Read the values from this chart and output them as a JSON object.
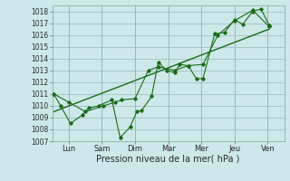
{
  "xlabel": "Pression niveau de la mer( hPa )",
  "bg_color": "#cce8e8",
  "grid_color": "#99bbbb",
  "line_color": "#1a6b1a",
  "ylim": [
    1007,
    1018.5
  ],
  "xlim": [
    0,
    7
  ],
  "x_tick_pos": [
    0.5,
    1.5,
    2.5,
    3.5,
    4.5,
    5.5,
    6.5
  ],
  "x_labels": [
    "Lun",
    "Sam",
    "Dim",
    "Mar",
    "Mer",
    "Jeu",
    "Ven"
  ],
  "y_ticks": [
    1007,
    1008,
    1009,
    1010,
    1011,
    1012,
    1013,
    1014,
    1015,
    1016,
    1017,
    1018
  ],
  "series1_x": [
    0.05,
    0.25,
    0.55,
    0.9,
    1.1,
    1.4,
    1.8,
    2.05,
    2.35,
    2.55,
    2.7,
    3.0,
    3.2,
    3.45,
    3.7,
    3.85,
    4.1,
    4.35,
    4.55,
    4.9,
    5.2,
    5.5,
    5.75,
    6.05,
    6.3,
    6.55
  ],
  "series1_y": [
    1011.0,
    1010.0,
    1008.5,
    1009.2,
    1009.8,
    1010.0,
    1010.5,
    1007.3,
    1008.2,
    1009.5,
    1009.6,
    1010.8,
    1013.7,
    1013.0,
    1012.8,
    1013.5,
    1013.4,
    1012.3,
    1012.3,
    1016.1,
    1016.2,
    1017.3,
    1016.9,
    1018.0,
    1018.2,
    1016.8
  ],
  "series2_x": [
    0.05,
    0.5,
    1.0,
    1.55,
    1.9,
    2.1,
    2.5,
    2.9,
    3.2,
    3.7,
    4.1,
    4.55,
    5.0,
    5.5,
    6.05,
    6.55
  ],
  "series2_y": [
    1011.0,
    1010.3,
    1009.5,
    1010.0,
    1010.3,
    1010.5,
    1010.6,
    1013.0,
    1013.3,
    1013.0,
    1013.4,
    1013.5,
    1016.0,
    1017.2,
    1018.1,
    1016.7
  ],
  "trend_x": [
    0.05,
    6.55
  ],
  "trend_y": [
    1009.5,
    1016.5
  ]
}
